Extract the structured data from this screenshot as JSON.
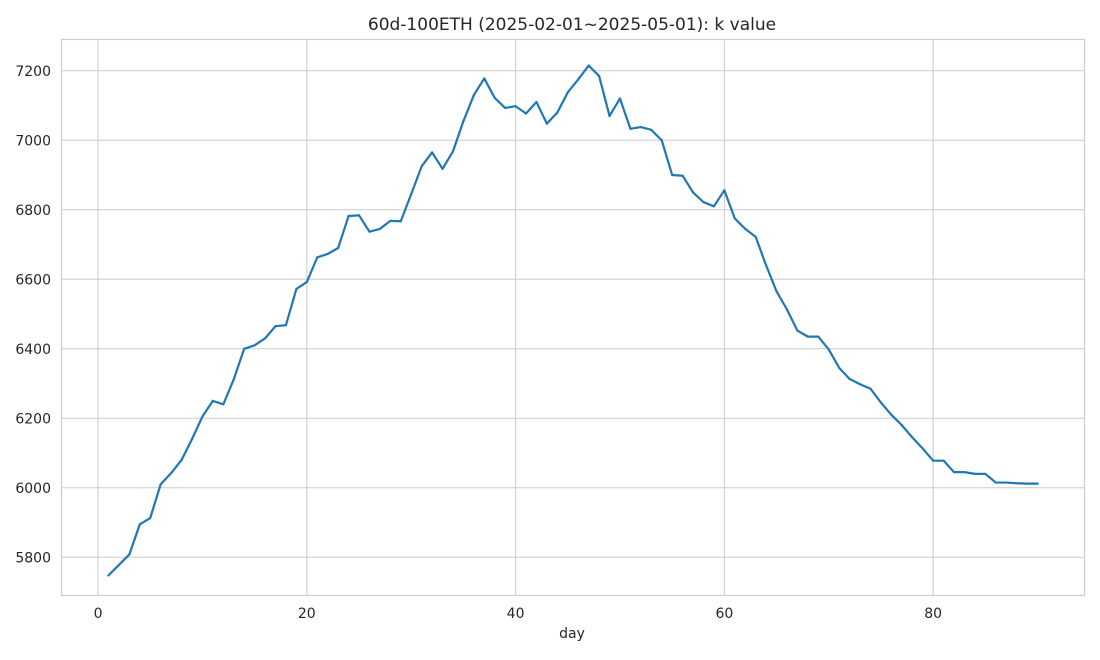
{
  "chart_data": {
    "type": "line",
    "title": "60d-100ETH (2025-02-01~2025-05-01): k value",
    "xlabel": "day",
    "ylabel": "",
    "xlim": [
      -3.5,
      94.5
    ],
    "ylim": [
      5690,
      7290
    ],
    "xticks": [
      0,
      20,
      40,
      60,
      80
    ],
    "yticks": [
      5800,
      6000,
      6200,
      6400,
      6600,
      6800,
      7000,
      7200
    ],
    "grid": true,
    "legend": "none",
    "series": [
      {
        "color": "#1f77b4",
        "x": [
          1,
          2,
          3,
          4,
          5,
          6,
          7,
          8,
          9,
          10,
          11,
          12,
          13,
          14,
          15,
          16,
          17,
          18,
          19,
          20,
          21,
          22,
          23,
          24,
          25,
          26,
          27,
          28,
          29,
          30,
          31,
          32,
          33,
          34,
          35,
          36,
          37,
          38,
          39,
          40,
          41,
          42,
          43,
          44,
          45,
          46,
          47,
          48,
          49,
          50,
          51,
          52,
          53,
          54,
          55,
          56,
          57,
          58,
          59,
          60,
          61,
          62,
          63,
          64,
          65,
          66,
          67,
          68,
          69,
          70,
          71,
          72,
          73,
          74,
          75,
          76,
          77,
          78,
          79,
          80,
          81,
          82,
          83,
          84,
          85,
          86,
          87,
          88,
          89,
          90
        ],
        "y": [
          5748,
          5778,
          5808,
          5895,
          5913,
          6010,
          6042,
          6080,
          6140,
          6205,
          6250,
          6240,
          6312,
          6400,
          6410,
          6430,
          6465,
          6468,
          6572,
          6592,
          6663,
          6673,
          6690,
          6782,
          6784,
          6737,
          6745,
          6768,
          6767,
          6845,
          6925,
          6965,
          6918,
          6968,
          7055,
          7130,
          7178,
          7122,
          7093,
          7098,
          7077,
          7110,
          7048,
          7080,
          7138,
          7175,
          7215,
          7185,
          7070,
          7120,
          7033,
          7038,
          7030,
          7000,
          6900,
          6898,
          6850,
          6822,
          6810,
          6856,
          6775,
          6745,
          6722,
          6640,
          6565,
          6513,
          6452,
          6435,
          6435,
          6398,
          6345,
          6313,
          6298,
          6285,
          6245,
          6210,
          6180,
          6145,
          6113,
          6078,
          6078,
          6045,
          6045,
          6040,
          6040,
          6015,
          6015,
          6013,
          6012,
          6012
        ]
      }
    ]
  }
}
